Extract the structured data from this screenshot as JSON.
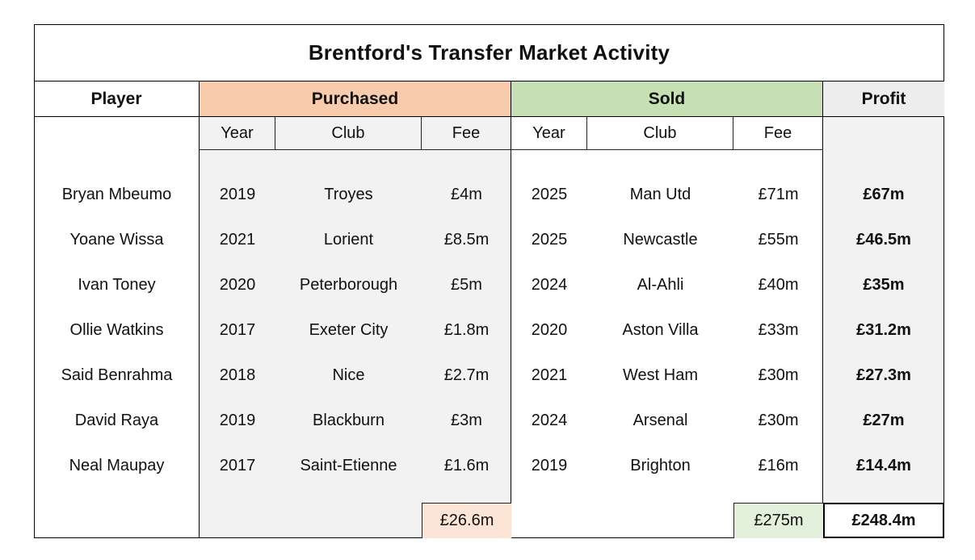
{
  "title": "Brentford's Transfer Market Activity",
  "headers": {
    "player": "Player",
    "purchased": "Purchased",
    "sold": "Sold",
    "profit": "Profit"
  },
  "subheaders": {
    "year": "Year",
    "club": "Club",
    "fee": "Fee"
  },
  "colors": {
    "purchased_header": "#f8cbad",
    "sold_header": "#c6e0b4",
    "profit_header": "#ededed",
    "purchased_body": "#f2f2f2",
    "profit_body": "#f2f2f2",
    "purchased_total": "#fce4d6",
    "sold_total": "#e2efda"
  },
  "rows": [
    {
      "player": "Bryan Mbeumo",
      "p_year": "2019",
      "p_club": "Troyes",
      "p_fee": "£4m",
      "s_year": "2025",
      "s_club": "Man Utd",
      "s_fee": "£71m",
      "profit": "£67m"
    },
    {
      "player": "Yoane Wissa",
      "p_year": "2021",
      "p_club": "Lorient",
      "p_fee": "£8.5m",
      "s_year": "2025",
      "s_club": "Newcastle",
      "s_fee": "£55m",
      "profit": "£46.5m"
    },
    {
      "player": "Ivan Toney",
      "p_year": "2020",
      "p_club": "Peterborough",
      "p_fee": "£5m",
      "s_year": "2024",
      "s_club": "Al-Ahli",
      "s_fee": "£40m",
      "profit": "£35m"
    },
    {
      "player": "Ollie Watkins",
      "p_year": "2017",
      "p_club": "Exeter City",
      "p_fee": "£1.8m",
      "s_year": "2020",
      "s_club": "Aston Villa",
      "s_fee": "£33m",
      "profit": "£31.2m"
    },
    {
      "player": "Said Benrahma",
      "p_year": "2018",
      "p_club": "Nice",
      "p_fee": "£2.7m",
      "s_year": "2021",
      "s_club": "West Ham",
      "s_fee": "£30m",
      "profit": "£27.3m"
    },
    {
      "player": "David Raya",
      "p_year": "2019",
      "p_club": "Blackburn",
      "p_fee": "£3m",
      "s_year": "2024",
      "s_club": "Arsenal",
      "s_fee": "£30m",
      "profit": "£27m"
    },
    {
      "player": "Neal Maupay",
      "p_year": "2017",
      "p_club": "Saint-Etienne",
      "p_fee": "£1.6m",
      "s_year": "2019",
      "s_club": "Brighton",
      "s_fee": "£16m",
      "profit": "£14.4m"
    }
  ],
  "totals": {
    "purchased": "£26.6m",
    "sold": "£275m",
    "profit": "£248.4m"
  }
}
